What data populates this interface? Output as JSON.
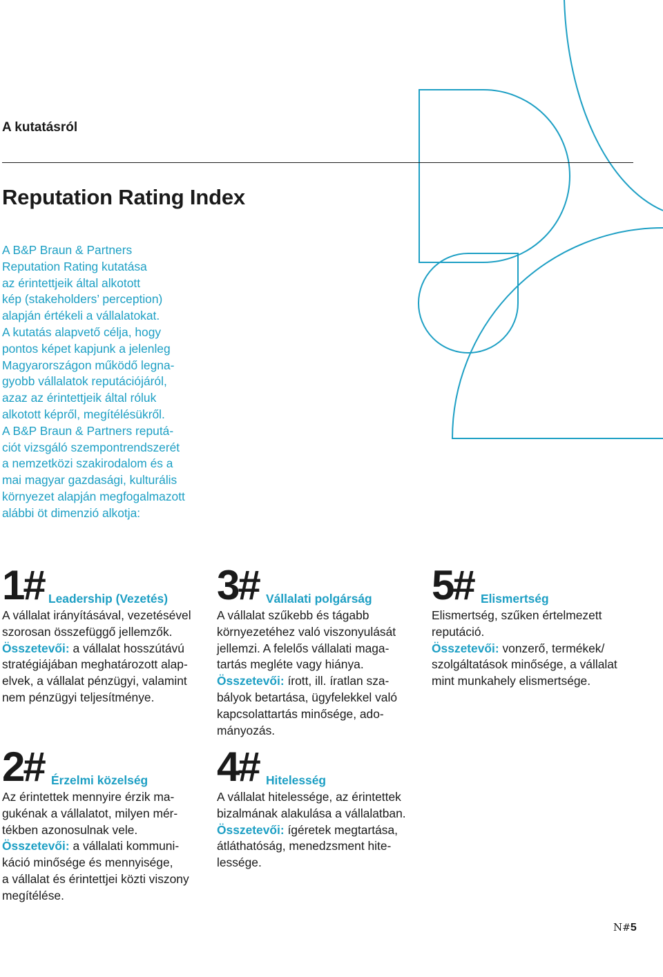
{
  "section_label": "A kutatásról",
  "title": "Reputation Rating Index",
  "intro_lines": [
    "A B&P Braun & Partners",
    "Reputation Rating kutatása",
    "az érintettjeik által alkotott",
    "kép (stakeholders’ perception)",
    "alapján értékeli a vállalatokat.",
    "A kutatás alapvető célja, hogy",
    "pontos képet kapjunk a jelenleg",
    "Magyarországon működő legna-",
    "gyobb vállalatok reputációjáról,",
    "azaz az érintettjeik által róluk",
    "alkotott képről, megítélésükről.",
    "A B&P Braun & Partners repu­tá-",
    "ciót vizsgáló szempontrendszerét",
    "a nemzetközi szakirodalom és a",
    "mai magyar gazdasági, kulturális",
    "környezet alapján megfogalmazott",
    "alábbi öt dimenzió alkotja:"
  ],
  "components_label": "Összetevői:",
  "dimensions": [
    {
      "number": "1#",
      "title": "Leadership (Vezetés)",
      "lines": [
        {
          "text": "A vállalat irányításával, vezetésével"
        },
        {
          "text": "szorosan összefüggő jellemzők."
        },
        {
          "label": "Összetevői:",
          "text": " a vállalat hosszútávú"
        },
        {
          "text": "stratégiájában meghatározott alap-"
        },
        {
          "text": "elvek, a vállalat pénzügyi, valamint"
        },
        {
          "text": "nem pénzügyi teljesítménye."
        }
      ]
    },
    {
      "number": "2#",
      "title": "Érzelmi közelség",
      "lines": [
        {
          "text": "Az érintettek mennyire érzik ma-"
        },
        {
          "text": "gukénak a vállalatot, milyen mér-"
        },
        {
          "text": "tékben azonosulnak vele."
        },
        {
          "label": "Összetevői:",
          "text": " a vállalati kommuni-"
        },
        {
          "text": "káció minősége és mennyisége,"
        },
        {
          "text": "a vállalat és érintettjei közti viszony"
        },
        {
          "text": "megítélése."
        }
      ]
    },
    {
      "number": "3#",
      "title": "Vállalati polgárság",
      "lines": [
        {
          "text": "A vállalat szűkebb és tágabb"
        },
        {
          "text": "környezetéhez való viszonyulását"
        },
        {
          "text": "jellemzi. A felelős vállalati maga-"
        },
        {
          "text": "tartás megléte vagy hiánya."
        },
        {
          "label": "Összetevői:",
          "text": " írott, ill. íratlan sza-"
        },
        {
          "text": "bályok betartása, ügyfelekkel való"
        },
        {
          "text": "kapcsolattartás minősége, ado-"
        },
        {
          "text": "mányozás."
        }
      ]
    },
    {
      "number": "4#",
      "title": "Hitelesség",
      "lines": [
        {
          "text": "A vállalat hitelessége, az érintettek"
        },
        {
          "text": "bizalmának alakulása a vállalatban."
        },
        {
          "label": "Összetevői:",
          "text": " ígéretek megtartása,"
        },
        {
          "text": "átláthatóság, menedzsment hite-"
        },
        {
          "text": "lessége."
        }
      ]
    },
    {
      "number": "5#",
      "title": "Elismertség",
      "lines": [
        {
          "text": "Elismertség, szűken értelmezett"
        },
        {
          "text": "reputáció."
        },
        {
          "label": "Összetevői:",
          "text": " vonzerő, termékek/"
        },
        {
          "text": "szolgáltatások minősége, a vállalat"
        },
        {
          "text": "mint munkahely elismertsége."
        }
      ]
    }
  ],
  "page_number": {
    "prefix": "N",
    "hash": "#",
    "number": "5"
  },
  "colors": {
    "accent": "#1d9fc4",
    "text": "#1a1a1a"
  }
}
